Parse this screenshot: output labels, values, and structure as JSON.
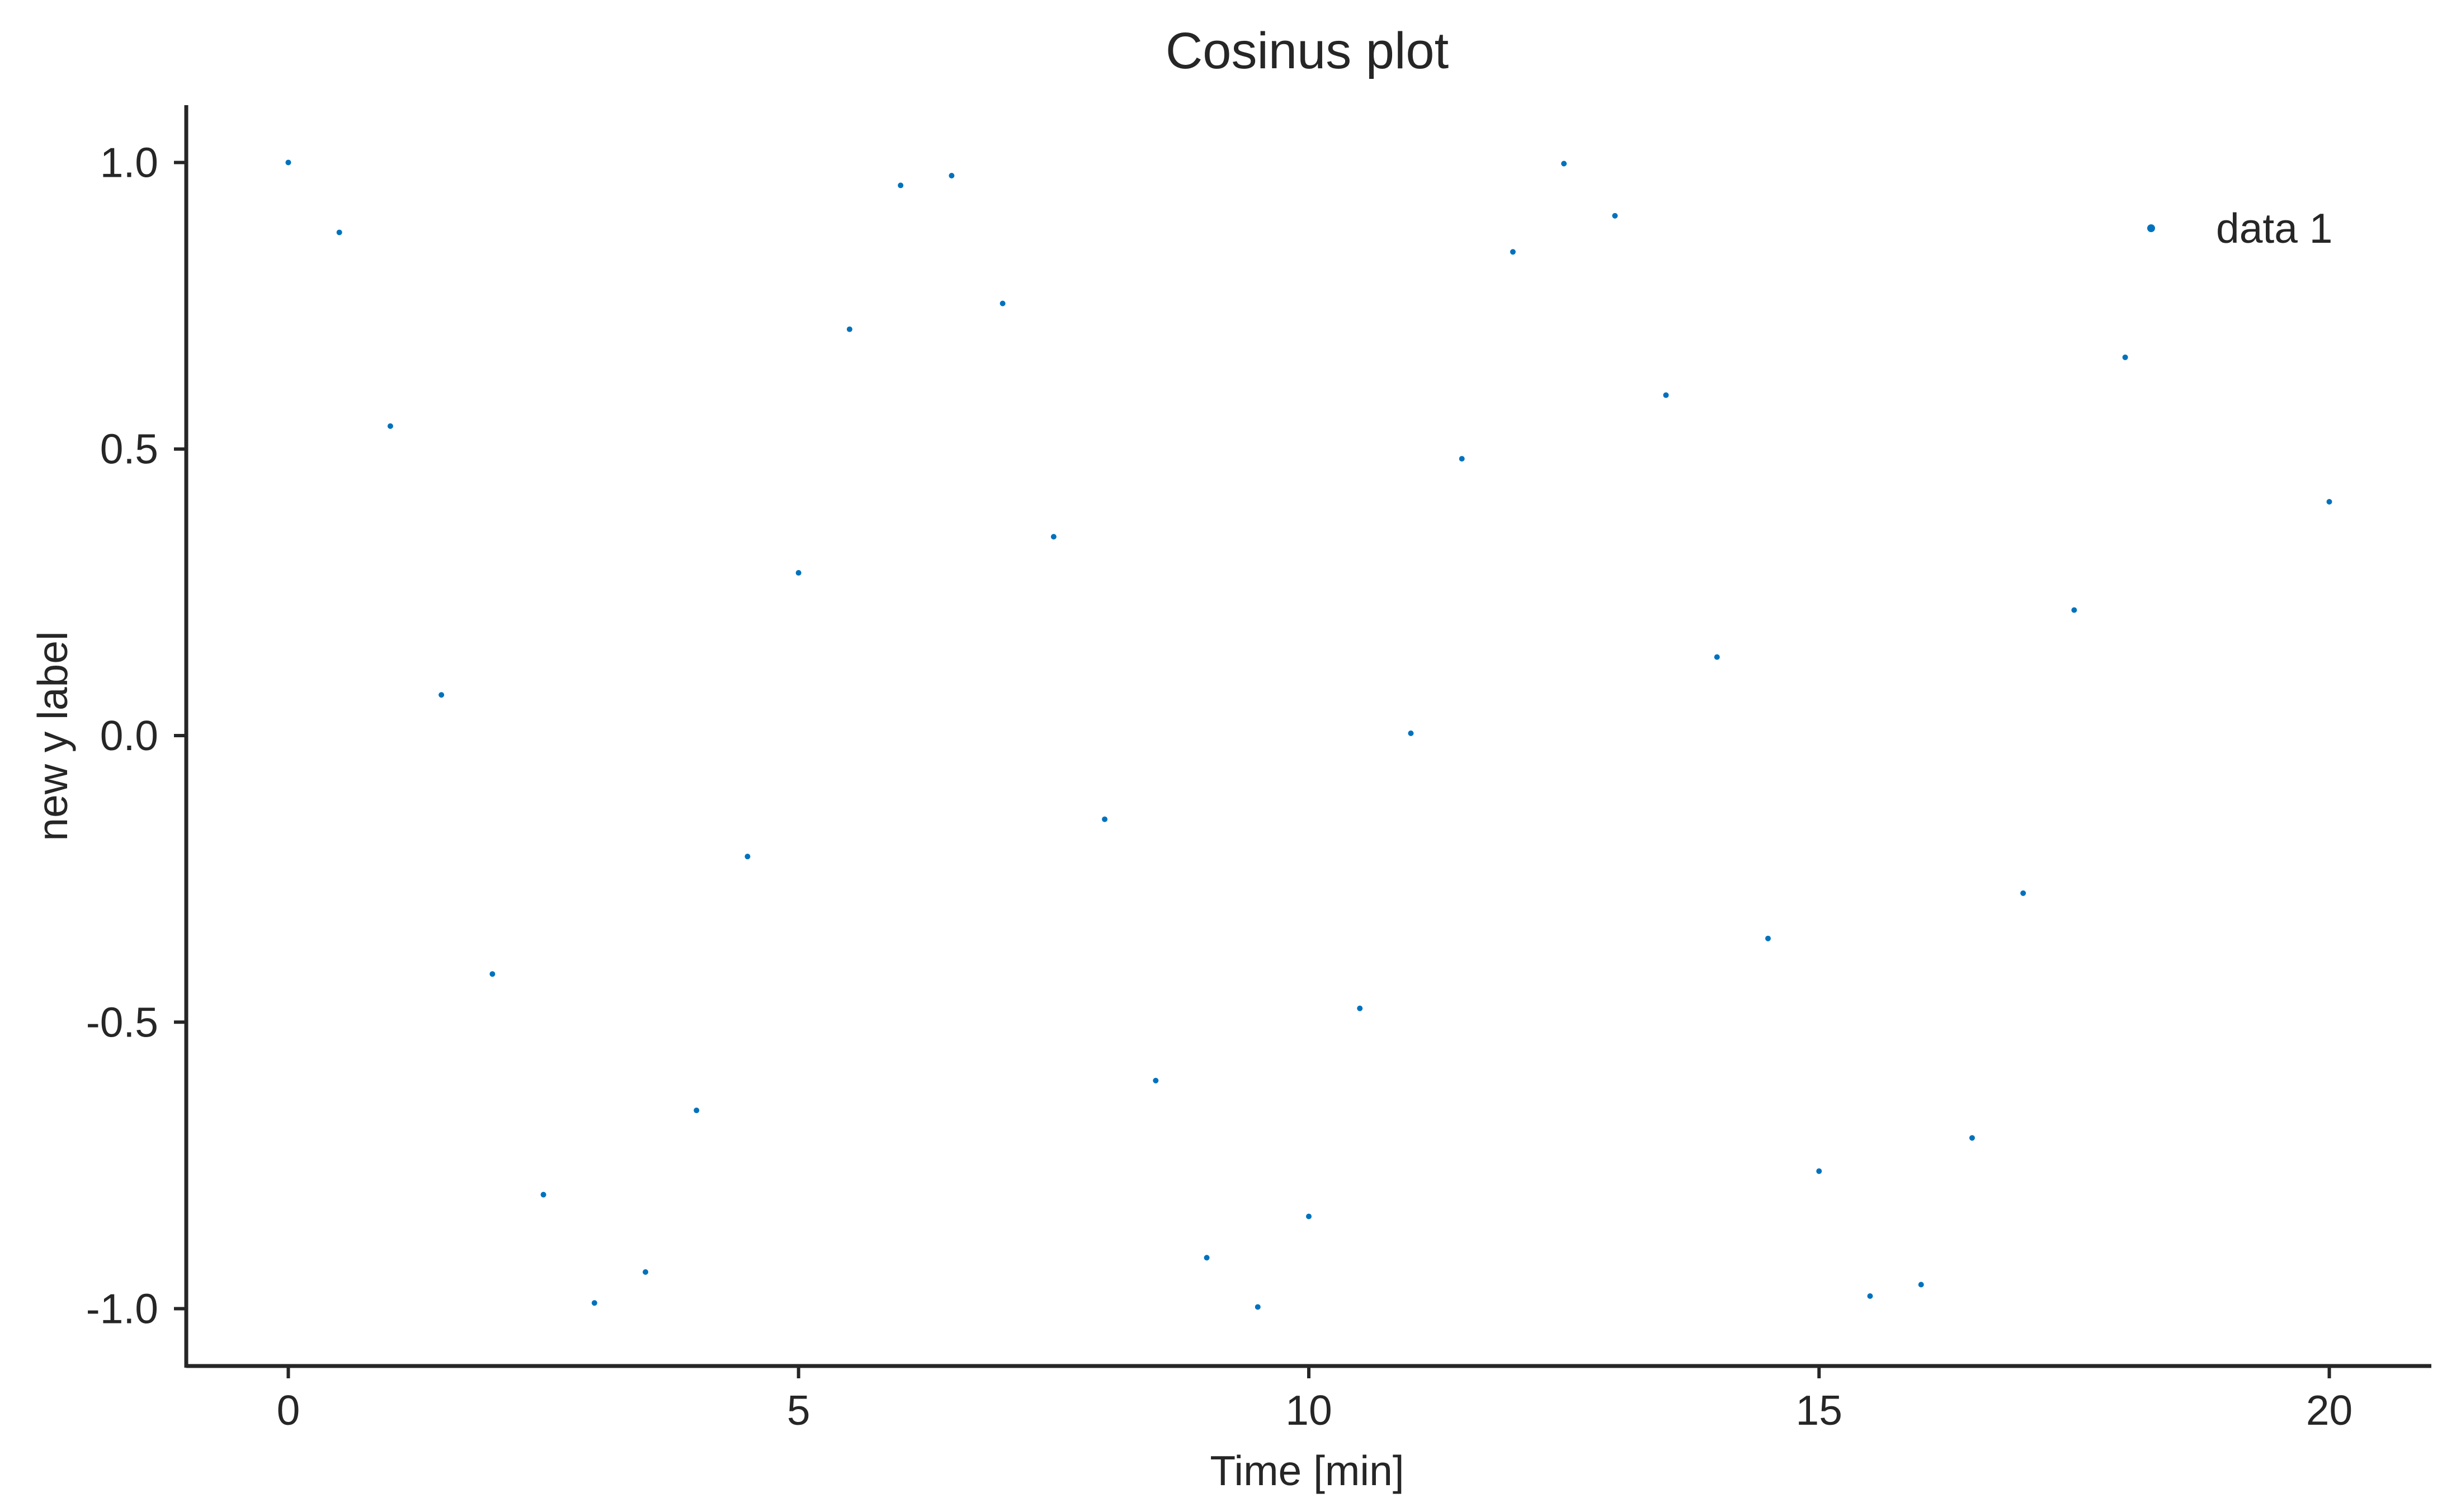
{
  "chart_data": {
    "type": "scatter",
    "title": "Cosinus plot",
    "xlabel": "Time [min]",
    "ylabel": "new y label",
    "xlim": [
      -1,
      21
    ],
    "ylim": [
      -1.1,
      1.1
    ],
    "xticks": [
      0,
      5,
      10,
      15,
      20
    ],
    "xtick_labels": [
      "0",
      "5",
      "10",
      "15",
      "20"
    ],
    "yticks": [
      -1.0,
      -0.5,
      0.0,
      0.5,
      1.0
    ],
    "ytick_labels": [
      "-1.0",
      "-0.5",
      "0.0",
      "0.5",
      "1.0"
    ],
    "grid": false,
    "legend_position": "top-right",
    "series": [
      {
        "name": "data 1",
        "color": "#0072bd",
        "x": [
          0,
          0.5,
          1,
          1.5,
          2,
          2.5,
          3,
          3.5,
          4,
          4.5,
          5,
          5.5,
          6,
          6.5,
          7,
          7.5,
          8,
          8.5,
          9,
          9.5,
          10,
          10.5,
          11,
          11.5,
          12,
          12.5,
          13,
          13.5,
          14,
          14.5,
          15,
          15.5,
          16,
          16.5,
          17,
          17.5,
          18,
          20
        ],
        "y": [
          1.0,
          0.878,
          0.54,
          0.071,
          -0.416,
          -0.801,
          -0.99,
          -0.936,
          -0.654,
          -0.211,
          0.284,
          0.709,
          0.96,
          0.977,
          0.754,
          0.347,
          -0.146,
          -0.602,
          -0.911,
          -0.997,
          -0.839,
          -0.476,
          0.004,
          0.483,
          0.844,
          0.998,
          0.907,
          0.594,
          0.137,
          -0.354,
          -0.76,
          -0.978,
          -0.958,
          -0.702,
          -0.275,
          0.219,
          0.66,
          0.408
        ]
      }
    ]
  }
}
